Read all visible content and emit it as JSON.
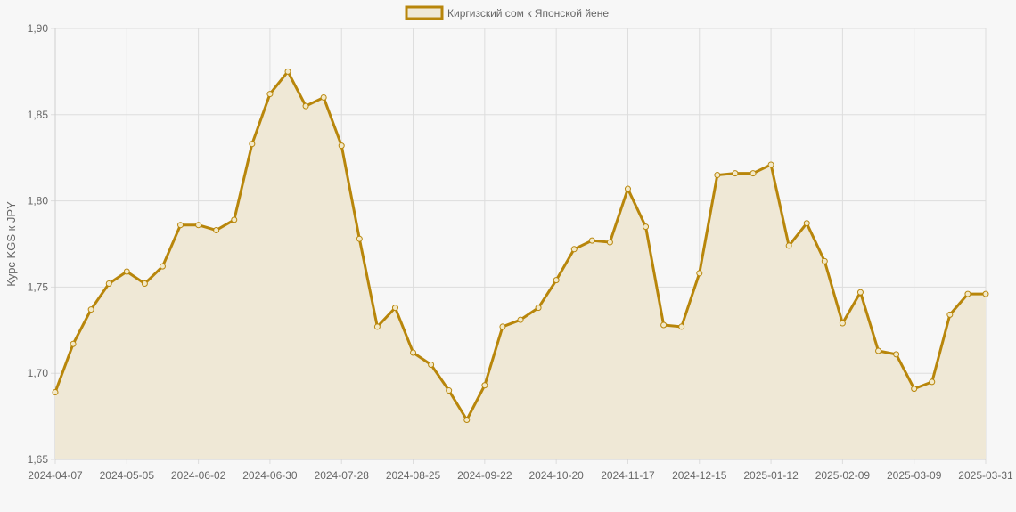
{
  "chart_data": {
    "type": "area",
    "xlabel": "",
    "ylabel": "Курс KGS к JPY",
    "ylim": [
      1.65,
      1.9
    ],
    "y_ticks": [
      "1,65",
      "1,70",
      "1,75",
      "1,80",
      "1,85",
      "1,90"
    ],
    "x_tick_labels": [
      "2024-04-07",
      "2024-05-05",
      "2024-06-02",
      "2024-06-30",
      "2024-07-28",
      "2024-08-25",
      "2024-09-22",
      "2024-10-20",
      "2024-11-17",
      "2024-12-15",
      "2025-01-12",
      "2025-02-09",
      "2025-03-09",
      "2025-03-31"
    ],
    "legend_position": "top",
    "grid": true,
    "series": [
      {
        "name": "Киргизский сом к Японской йене",
        "color": "#b8860b",
        "fill": "#efe8d6",
        "x": [
          "2024-04-07",
          "2024-04-14",
          "2024-04-21",
          "2024-04-28",
          "2024-05-05",
          "2024-05-12",
          "2024-05-19",
          "2024-05-26",
          "2024-06-02",
          "2024-06-09",
          "2024-06-16",
          "2024-06-23",
          "2024-06-30",
          "2024-07-07",
          "2024-07-14",
          "2024-07-21",
          "2024-07-28",
          "2024-08-04",
          "2024-08-11",
          "2024-08-18",
          "2024-08-25",
          "2024-09-01",
          "2024-09-08",
          "2024-09-15",
          "2024-09-22",
          "2024-09-29",
          "2024-10-06",
          "2024-10-13",
          "2024-10-20",
          "2024-10-27",
          "2024-11-03",
          "2024-11-10",
          "2024-11-17",
          "2024-11-24",
          "2024-12-01",
          "2024-12-08",
          "2024-12-15",
          "2024-12-22",
          "2024-12-29",
          "2025-01-05",
          "2025-01-12",
          "2025-01-19",
          "2025-01-26",
          "2025-02-02",
          "2025-02-09",
          "2025-02-16",
          "2025-02-23",
          "2025-03-02",
          "2025-03-09",
          "2025-03-16",
          "2025-03-23",
          "2025-03-30",
          "2025-03-31"
        ],
        "values": [
          1.689,
          1.717,
          1.737,
          1.752,
          1.759,
          1.752,
          1.762,
          1.786,
          1.786,
          1.783,
          1.789,
          1.833,
          1.862,
          1.875,
          1.855,
          1.86,
          1.832,
          1.778,
          1.727,
          1.738,
          1.712,
          1.705,
          1.69,
          1.673,
          1.693,
          1.727,
          1.731,
          1.738,
          1.754,
          1.772,
          1.777,
          1.776,
          1.807,
          1.785,
          1.728,
          1.727,
          1.758,
          1.815,
          1.816,
          1.816,
          1.821,
          1.774,
          1.787,
          1.765,
          1.729,
          1.747,
          1.713,
          1.711,
          1.691,
          1.695,
          1.734,
          1.746,
          1.746
        ]
      }
    ]
  }
}
